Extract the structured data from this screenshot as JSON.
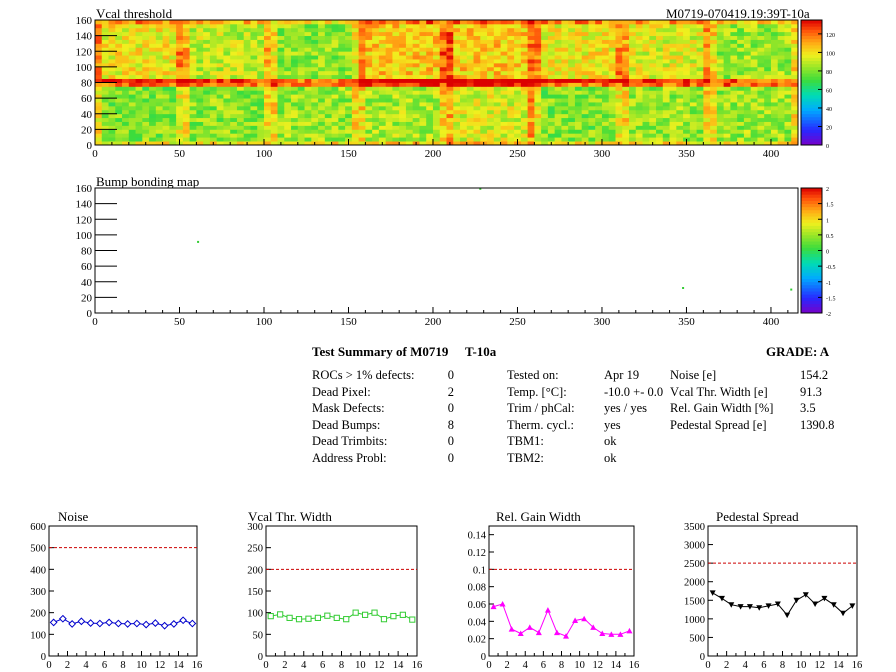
{
  "header": {
    "map1_title": "Vcal threshold",
    "map1_id": "M0719-070419.19:39T-10a",
    "map2_title": "Bump bonding map"
  },
  "summary": {
    "title": "Test Summary of M0719",
    "temp_tag": "T-10a",
    "grade": "GRADE:  A",
    "defects": [
      {
        "label": "ROCs > 1% defects:",
        "value": "0"
      },
      {
        "label": "Dead Pixel:",
        "value": "2"
      },
      {
        "label": "Mask Defects:",
        "value": "0"
      },
      {
        "label": "Dead Bumps:",
        "value": "8"
      },
      {
        "label": "Dead Trimbits:",
        "value": "0"
      },
      {
        "label": "Address Probl:",
        "value": "0"
      }
    ],
    "conditions": [
      {
        "label": "Tested on:",
        "value": "Apr 19"
      },
      {
        "label": "Temp. [°C]:",
        "value": "-10.0 +- 0.0"
      },
      {
        "label": "Trim / phCal:",
        "value": "yes / yes"
      },
      {
        "label": "Therm. cycl.:",
        "value": "yes"
      },
      {
        "label": "TBM1:",
        "value": "ok"
      },
      {
        "label": "TBM2:",
        "value": "ok"
      }
    ],
    "results": [
      {
        "label": "Noise [e]",
        "value": "154.2"
      },
      {
        "label": "Vcal Thr. Width [e]",
        "value": "91.3"
      },
      {
        "label": "Rel. Gain Width [%]",
        "value": "3.5"
      },
      {
        "label": "Pedestal Spread [e]",
        "value": "1390.8"
      }
    ]
  },
  "colors": {
    "noise": "#0000cc",
    "vcal": "#33cc33",
    "gain": "#ff00ff",
    "pedestal": "#000000",
    "limit": "#cc0000"
  },
  "chart_data": [
    {
      "type": "heatmap",
      "title": "Vcal threshold",
      "x_ticks": [
        "0",
        "50",
        "100",
        "150",
        "200",
        "250",
        "300",
        "350",
        "400"
      ],
      "y_ticks": [
        "0",
        "20",
        "40",
        "60",
        "80",
        "100",
        "120",
        "140",
        "160"
      ],
      "xlim": [
        0,
        416
      ],
      "ylim": [
        0,
        160
      ],
      "colorbar_ticks": [
        "0",
        "20",
        "40",
        "60",
        "80",
        "100",
        "120"
      ],
      "colorbar_range": [
        0,
        135
      ],
      "roc_mean_values": [
        [
          80,
          82,
          84,
          86,
          94,
          80,
          84,
          84
        ],
        [
          98,
          90,
          82,
          104,
          104,
          98,
          94,
          84
        ]
      ]
    },
    {
      "type": "heatmap",
      "title": "Bump bonding map",
      "x_ticks": [
        "0",
        "50",
        "100",
        "150",
        "200",
        "250",
        "300",
        "350",
        "400"
      ],
      "y_ticks": [
        "0",
        "20",
        "40",
        "60",
        "80",
        "100",
        "120",
        "140",
        "160"
      ],
      "xlim": [
        0,
        416
      ],
      "ylim": [
        0,
        160
      ],
      "colorbar_ticks": [
        "2",
        "1.5",
        "1",
        "0.5",
        "0",
        "-0.5",
        "-1",
        "-1.5",
        "-2"
      ],
      "colorbar_range": [
        -2,
        2
      ],
      "points": [
        [
          228,
          159
        ],
        [
          61,
          91
        ],
        [
          348,
          32
        ],
        [
          412,
          30
        ]
      ]
    },
    {
      "type": "line",
      "title": "Noise",
      "x": [
        0,
        1,
        2,
        3,
        4,
        5,
        6,
        7,
        8,
        9,
        10,
        11,
        12,
        13,
        14,
        15
      ],
      "values": [
        155,
        172,
        148,
        160,
        152,
        150,
        155,
        150,
        148,
        150,
        145,
        152,
        140,
        148,
        165,
        150
      ],
      "limit": 500,
      "xlim": [
        0,
        16
      ],
      "ylim": [
        0,
        600
      ],
      "x_ticks": [
        "0",
        "2",
        "4",
        "6",
        "8",
        "10",
        "12",
        "14",
        "16"
      ],
      "y_ticks": [
        "0",
        "100",
        "200",
        "300",
        "400",
        "500",
        "600"
      ],
      "marker": "diamond"
    },
    {
      "type": "line",
      "title": "Vcal Thr. Width",
      "x": [
        0,
        1,
        2,
        3,
        4,
        5,
        6,
        7,
        8,
        9,
        10,
        11,
        12,
        13,
        14,
        15
      ],
      "values": [
        92,
        96,
        88,
        85,
        86,
        88,
        93,
        88,
        85,
        100,
        95,
        100,
        85,
        92,
        95,
        84
      ],
      "limit": 200,
      "xlim": [
        0,
        16
      ],
      "ylim": [
        0,
        300
      ],
      "x_ticks": [
        "0",
        "2",
        "4",
        "6",
        "8",
        "10",
        "12",
        "14",
        "16"
      ],
      "y_ticks": [
        "0",
        "50",
        "100",
        "150",
        "200",
        "250",
        "300"
      ],
      "marker": "square"
    },
    {
      "type": "line",
      "title": "Rel. Gain Width",
      "x": [
        0,
        1,
        2,
        3,
        4,
        5,
        6,
        7,
        8,
        9,
        10,
        11,
        12,
        13,
        14,
        15
      ],
      "values": [
        0.057,
        0.06,
        0.031,
        0.026,
        0.033,
        0.027,
        0.053,
        0.027,
        0.023,
        0.041,
        0.043,
        0.033,
        0.026,
        0.025,
        0.025,
        0.029
      ],
      "limit": 0.1,
      "xlim": [
        0,
        16
      ],
      "ylim": [
        0,
        0.15
      ],
      "x_ticks": [
        "0",
        "2",
        "4",
        "6",
        "8",
        "10",
        "12",
        "14",
        "16"
      ],
      "y_ticks": [
        "0",
        "0.02",
        "0.04",
        "0.06",
        "0.08",
        "0.1",
        "0.12",
        "0.14"
      ],
      "marker": "triangle"
    },
    {
      "type": "line",
      "title": "Pedestal Spread",
      "x": [
        0,
        1,
        2,
        3,
        4,
        5,
        6,
        7,
        8,
        9,
        10,
        11,
        12,
        13,
        14,
        15
      ],
      "values": [
        1700,
        1550,
        1380,
        1330,
        1330,
        1300,
        1350,
        1400,
        1100,
        1500,
        1650,
        1400,
        1550,
        1380,
        1150,
        1350
      ],
      "limit": 2500,
      "xlim": [
        0,
        16
      ],
      "ylim": [
        0,
        3500
      ],
      "x_ticks": [
        "0",
        "2",
        "4",
        "6",
        "8",
        "10",
        "12",
        "14",
        "16"
      ],
      "y_ticks": [
        "0",
        "500",
        "1000",
        "1500",
        "2000",
        "2500",
        "3000",
        "3500"
      ],
      "marker": "triangle-down"
    }
  ]
}
